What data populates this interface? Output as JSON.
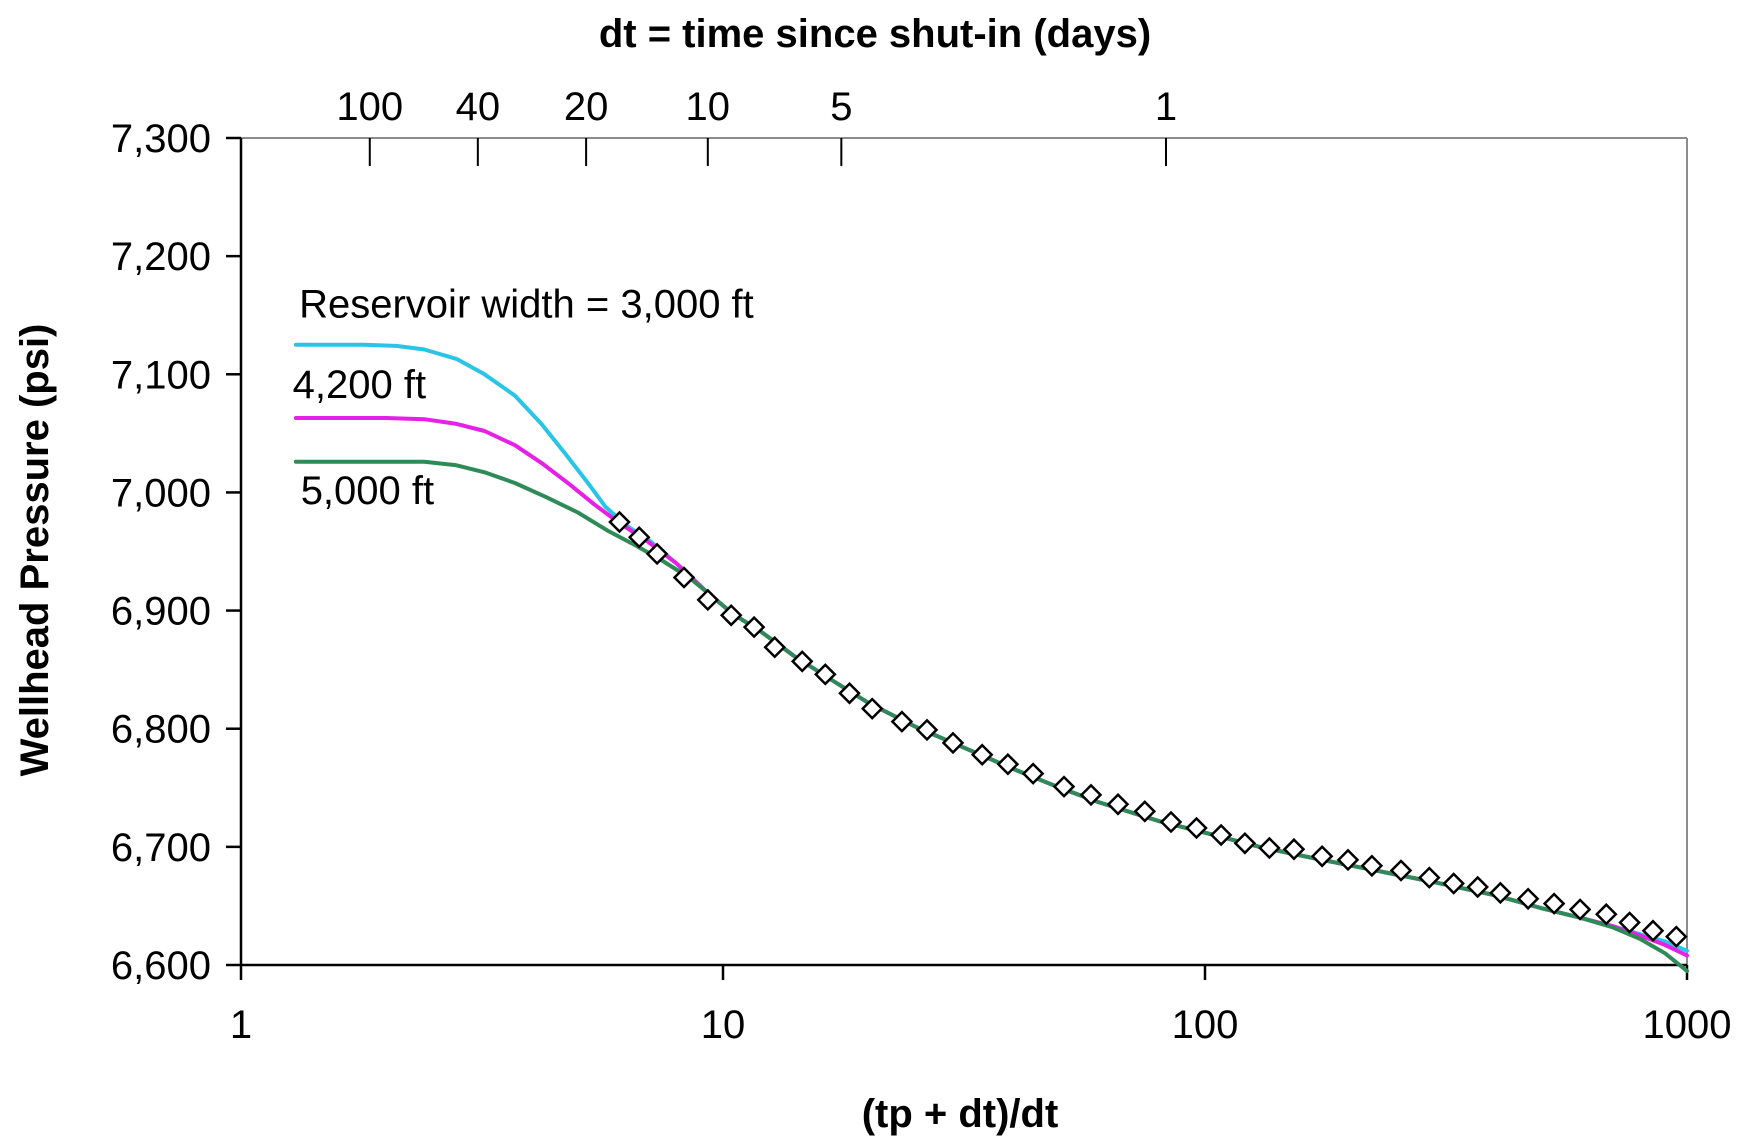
{
  "chart_data": {
    "type": "line",
    "title": "",
    "xlabel": "(tp + dt)/dt",
    "ylabel": "Wellhead Pressure (psi)",
    "x2label": "dt = time since shut-in (days)",
    "xscale": "log",
    "xlim": [
      1,
      1000
    ],
    "ylim": [
      6600,
      7300
    ],
    "grid": false,
    "legend": "none",
    "x_ticks": [
      {
        "value": 1,
        "label": "1"
      },
      {
        "value": 10,
        "label": "10"
      },
      {
        "value": 100,
        "label": "100"
      },
      {
        "value": 1000,
        "label": "1000"
      }
    ],
    "y_ticks": [
      {
        "value": 6600,
        "label": "6,600"
      },
      {
        "value": 6700,
        "label": "6,700"
      },
      {
        "value": 6800,
        "label": "6,800"
      },
      {
        "value": 6900,
        "label": "6,900"
      },
      {
        "value": 7000,
        "label": "7,000"
      },
      {
        "value": 7100,
        "label": "7,100"
      },
      {
        "value": 7200,
        "label": "7,200"
      },
      {
        "value": 7300,
        "label": "7,300"
      }
    ],
    "x2_ticks": [
      {
        "x": 1.85,
        "label": "100"
      },
      {
        "x": 3.1,
        "label": "40"
      },
      {
        "x": 5.2,
        "label": "20"
      },
      {
        "x": 9.3,
        "label": "10"
      },
      {
        "x": 17.6,
        "label": "5"
      },
      {
        "x": 83,
        "label": "1"
      }
    ],
    "series": [
      {
        "label": "Reservoir width = 3,000 ft",
        "color": "#29c4e6",
        "points": [
          [
            1.3,
            7125
          ],
          [
            1.5,
            7125
          ],
          [
            1.8,
            7125
          ],
          [
            2.1,
            7124
          ],
          [
            2.4,
            7121
          ],
          [
            2.8,
            7113
          ],
          [
            3.2,
            7100
          ],
          [
            3.7,
            7082
          ],
          [
            4.2,
            7058
          ],
          [
            4.7,
            7033
          ],
          [
            5.2,
            7010
          ],
          [
            5.7,
            6988
          ],
          [
            6.3,
            6972
          ],
          [
            7,
            6960
          ],
          [
            8,
            6940
          ],
          [
            9.3,
            6915
          ],
          [
            10.5,
            6897
          ],
          [
            12,
            6882
          ],
          [
            14,
            6862
          ],
          [
            17,
            6840
          ],
          [
            20,
            6822
          ],
          [
            25,
            6802
          ],
          [
            30,
            6788
          ],
          [
            40,
            6766
          ],
          [
            50,
            6750
          ],
          [
            60,
            6738
          ],
          [
            80,
            6722
          ],
          [
            100,
            6712
          ],
          [
            130,
            6700
          ],
          [
            170,
            6690
          ],
          [
            220,
            6681
          ],
          [
            300,
            6670
          ],
          [
            400,
            6659
          ],
          [
            500,
            6648
          ],
          [
            600,
            6640
          ],
          [
            700,
            6633
          ],
          [
            800,
            6626
          ],
          [
            900,
            6620
          ],
          [
            1000,
            6612
          ]
        ]
      },
      {
        "label": "4,200 ft",
        "color": "#e620e6",
        "points": [
          [
            1.3,
            7063
          ],
          [
            1.6,
            7063
          ],
          [
            2,
            7063
          ],
          [
            2.4,
            7062
          ],
          [
            2.8,
            7058
          ],
          [
            3.2,
            7052
          ],
          [
            3.7,
            7040
          ],
          [
            4.2,
            7025
          ],
          [
            4.8,
            7007
          ],
          [
            5.4,
            6990
          ],
          [
            6.1,
            6974
          ],
          [
            7,
            6958
          ],
          [
            8,
            6940
          ],
          [
            9.3,
            6915
          ],
          [
            10.5,
            6897
          ],
          [
            12,
            6882
          ],
          [
            14,
            6862
          ],
          [
            17,
            6840
          ],
          [
            20,
            6822
          ],
          [
            25,
            6802
          ],
          [
            30,
            6788
          ],
          [
            40,
            6766
          ],
          [
            50,
            6750
          ],
          [
            60,
            6738
          ],
          [
            80,
            6722
          ],
          [
            100,
            6712
          ],
          [
            130,
            6700
          ],
          [
            170,
            6690
          ],
          [
            220,
            6681
          ],
          [
            300,
            6670
          ],
          [
            400,
            6659
          ],
          [
            500,
            6648
          ],
          [
            600,
            6640
          ],
          [
            700,
            6633
          ],
          [
            800,
            6625
          ],
          [
            900,
            6617
          ],
          [
            1000,
            6608
          ]
        ]
      },
      {
        "label": "5,000 ft",
        "color": "#2e8b57",
        "points": [
          [
            1.3,
            7026
          ],
          [
            1.6,
            7026
          ],
          [
            2,
            7026
          ],
          [
            2.4,
            7026
          ],
          [
            2.8,
            7023
          ],
          [
            3.2,
            7017
          ],
          [
            3.7,
            7008
          ],
          [
            4.3,
            6996
          ],
          [
            5,
            6983
          ],
          [
            5.8,
            6967
          ],
          [
            6.6,
            6955
          ],
          [
            7.5,
            6942
          ],
          [
            8.5,
            6928
          ],
          [
            9.3,
            6915
          ],
          [
            10.5,
            6897
          ],
          [
            12,
            6882
          ],
          [
            14,
            6862
          ],
          [
            17,
            6840
          ],
          [
            20,
            6822
          ],
          [
            25,
            6802
          ],
          [
            30,
            6788
          ],
          [
            40,
            6766
          ],
          [
            50,
            6750
          ],
          [
            60,
            6738
          ],
          [
            80,
            6722
          ],
          [
            100,
            6712
          ],
          [
            130,
            6700
          ],
          [
            170,
            6690
          ],
          [
            220,
            6681
          ],
          [
            300,
            6670
          ],
          [
            400,
            6659
          ],
          [
            500,
            6648
          ],
          [
            600,
            6640
          ],
          [
            700,
            6632
          ],
          [
            800,
            6622
          ],
          [
            900,
            6610
          ],
          [
            1000,
            6595
          ]
        ]
      }
    ],
    "scatter": {
      "label": "",
      "marker": "diamond",
      "points": [
        [
          6.1,
          6975
        ],
        [
          6.7,
          6962
        ],
        [
          7.3,
          6948
        ],
        [
          8.3,
          6928
        ],
        [
          9.3,
          6909
        ],
        [
          10.4,
          6896
        ],
        [
          11.6,
          6886
        ],
        [
          12.8,
          6869
        ],
        [
          14.6,
          6857
        ],
        [
          16.3,
          6846
        ],
        [
          18.3,
          6830
        ],
        [
          20.4,
          6817
        ],
        [
          23.5,
          6806
        ],
        [
          26.5,
          6799
        ],
        [
          30,
          6788
        ],
        [
          34.5,
          6778
        ],
        [
          39,
          6770
        ],
        [
          44,
          6762
        ],
        [
          51,
          6751
        ],
        [
          58,
          6744
        ],
        [
          66,
          6736
        ],
        [
          75,
          6730
        ],
        [
          85,
          6721
        ],
        [
          96,
          6716
        ],
        [
          108,
          6710
        ],
        [
          121,
          6703
        ],
        [
          136,
          6699
        ],
        [
          153,
          6698
        ],
        [
          175,
          6692
        ],
        [
          198,
          6689
        ],
        [
          222,
          6684
        ],
        [
          255,
          6680
        ],
        [
          292,
          6674
        ],
        [
          328,
          6669
        ],
        [
          368,
          6666
        ],
        [
          410,
          6661
        ],
        [
          468,
          6656
        ],
        [
          530,
          6652
        ],
        [
          600,
          6647
        ],
        [
          680,
          6643
        ],
        [
          760,
          6636
        ],
        [
          850,
          6629
        ],
        [
          950,
          6624
        ]
      ]
    },
    "annotations": [
      {
        "text": "Reservoir width = 3,000 ft",
        "x": 1.32,
        "y": 7148
      },
      {
        "text": "4,200 ft",
        "x": 1.28,
        "y": 7080
      },
      {
        "text": "5,000 ft",
        "x": 1.33,
        "y": 6990
      }
    ]
  }
}
